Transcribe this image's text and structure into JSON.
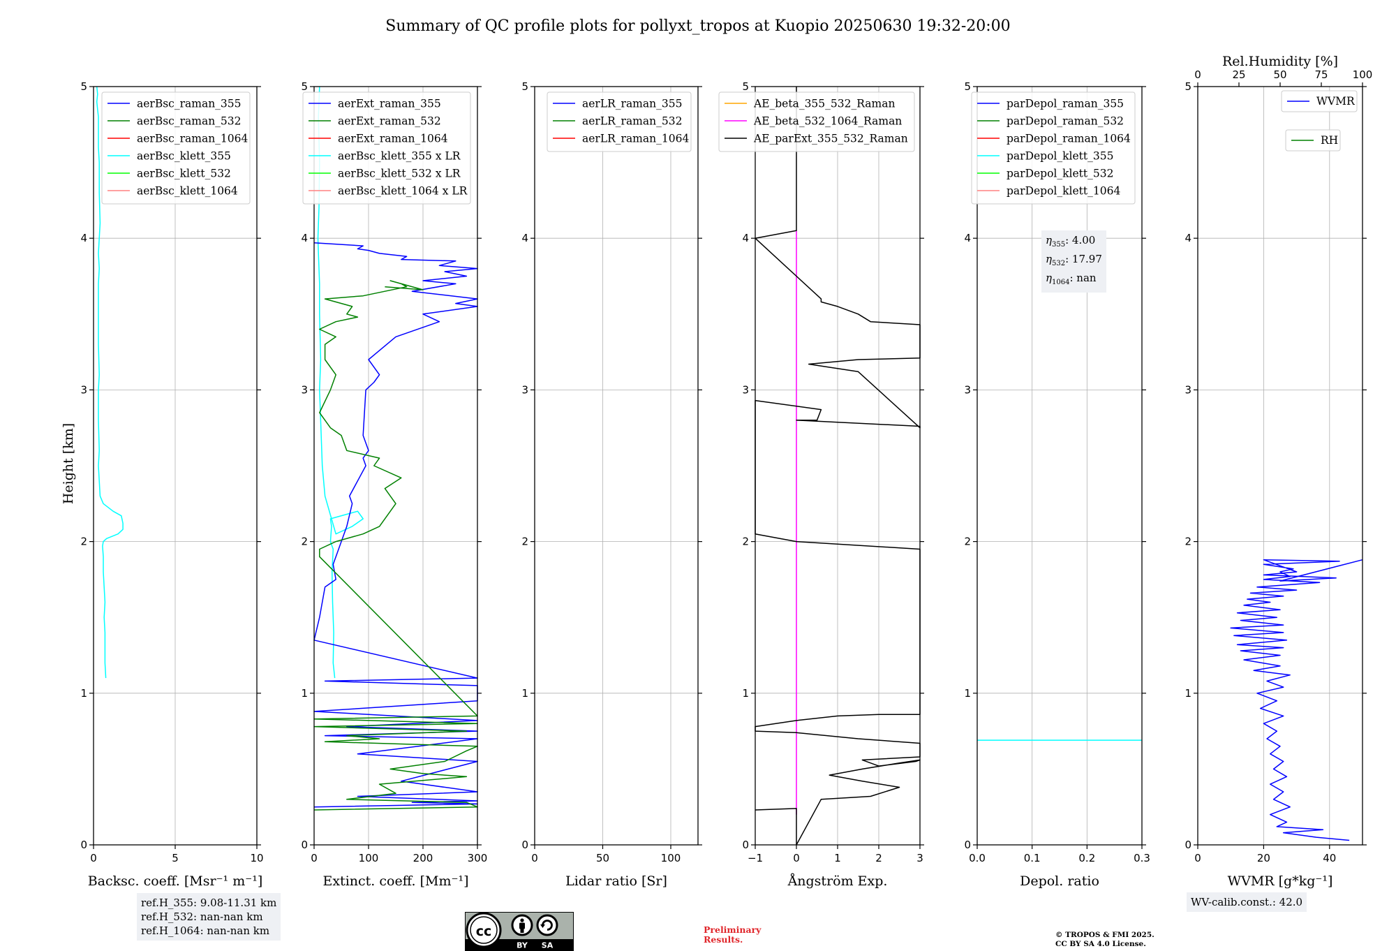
{
  "title": "Summary of QC profile plots for pollyxt_tropos at Kuopio 20250630 19:32-20:00",
  "ylabel": "Height [km]",
  "chart_data": [
    {
      "id": "bsc",
      "type": "line",
      "xlabel": "Backsc. coeff. [Msr⁻¹ m⁻¹]",
      "xlim": [
        0,
        10
      ],
      "xticks": [
        0,
        5,
        10
      ],
      "ylim": [
        0,
        5
      ],
      "yticks": [
        0,
        1,
        2,
        3,
        4,
        5
      ],
      "grid": true,
      "legend": [
        {
          "name": "aerBsc_raman_355",
          "color": "#0000ff"
        },
        {
          "name": "aerBsc_raman_532",
          "color": "#008000"
        },
        {
          "name": "aerBsc_raman_1064",
          "color": "#ff0000"
        },
        {
          "name": "aerBsc_klett_355",
          "color": "#00ffff"
        },
        {
          "name": "aerBsc_klett_532",
          "color": "#00ff00"
        },
        {
          "name": "aerBsc_klett_1064",
          "color": "#ff8080"
        }
      ],
      "series": [
        {
          "name": "aerBsc_klett_355",
          "color": "#00ffff",
          "x": [
            0.75,
            0.7,
            0.7,
            0.7,
            0.65,
            0.7,
            0.65,
            0.6,
            0.6,
            0.55,
            0.6,
            0.8,
            1.5,
            1.8,
            1.8,
            1.7,
            1.2,
            0.6,
            0.4,
            0.35,
            0.3,
            0.35,
            0.3,
            0.3,
            0.35,
            0.3,
            0.3,
            0.3,
            0.35,
            0.3,
            0.35,
            0.4,
            0.35,
            0.35,
            0.3,
            0.3,
            0.3,
            0.25,
            0.2,
            0.25,
            0.2
          ],
          "y": [
            1.1,
            1.2,
            1.3,
            1.4,
            1.5,
            1.6,
            1.7,
            1.8,
            1.9,
            1.97,
            2.0,
            2.02,
            2.05,
            2.08,
            2.12,
            2.17,
            2.2,
            2.25,
            2.3,
            2.4,
            2.5,
            2.6,
            2.8,
            3.0,
            3.1,
            3.3,
            3.5,
            3.7,
            3.8,
            3.9,
            4.0,
            4.1,
            4.3,
            4.5,
            4.6,
            4.7,
            4.8,
            4.85,
            4.9,
            4.95,
            5.0
          ]
        }
      ]
    },
    {
      "id": "ext",
      "type": "line",
      "xlabel": "Extinct. coeff. [Mm⁻¹]",
      "xlim": [
        0,
        300
      ],
      "xticks": [
        0,
        100,
        200,
        300
      ],
      "ylim": [
        0,
        5
      ],
      "yticks": [
        0,
        1,
        2,
        3,
        4,
        5
      ],
      "grid": true,
      "legend": [
        {
          "name": "aerExt_raman_355",
          "color": "#0000ff"
        },
        {
          "name": "aerExt_raman_532",
          "color": "#008000"
        },
        {
          "name": "aerExt_raman_1064",
          "color": "#ff0000"
        },
        {
          "name": "aerBsc_klett_355 x LR",
          "color": "#00ffff"
        },
        {
          "name": "aerBsc_klett_532 x LR",
          "color": "#00ff00"
        },
        {
          "name": "aerBsc_klett_1064 x LR",
          "color": "#ff8080"
        }
      ],
      "series": [
        {
          "name": "aerBsc_klett_355 x LR",
          "color": "#00ffff",
          "x": [
            38,
            35,
            36,
            34,
            33,
            35,
            30,
            32,
            30,
            60,
            80,
            90,
            70,
            40,
            20,
            15,
            12,
            10,
            12,
            10,
            10,
            8,
            7,
            9,
            10,
            8,
            10
          ],
          "y": [
            1.1,
            1.2,
            1.4,
            1.6,
            1.8,
            1.95,
            2.0,
            2.1,
            2.15,
            2.18,
            2.2,
            2.15,
            2.1,
            2.05,
            2.3,
            2.5,
            2.8,
            3.0,
            3.2,
            3.5,
            3.7,
            3.9,
            4.0,
            4.2,
            4.5,
            4.8,
            5.0
          ]
        },
        {
          "name": "aerExt_raman_355",
          "color": "#0000ff",
          "x": [
            0,
            300,
            180,
            300,
            80,
            300,
            160,
            300,
            80,
            300,
            20,
            300,
            60,
            300,
            0,
            300,
            300,
            20,
            300,
            0,
            10,
            20,
            40,
            35,
            45,
            60,
            70,
            65,
            80,
            95,
            90,
            100,
            90,
            95,
            110,
            120,
            100,
            150,
            230,
            200,
            300,
            260,
            300,
            180,
            260,
            200,
            280,
            240,
            300,
            230,
            260,
            160,
            170,
            120,
            100,
            80,
            90,
            0
          ],
          "y": [
            0.25,
            0.27,
            0.28,
            0.29,
            0.32,
            0.35,
            0.42,
            0.55,
            0.6,
            0.7,
            0.72,
            0.75,
            0.78,
            0.82,
            0.88,
            0.95,
            1.05,
            1.08,
            1.1,
            1.35,
            1.5,
            1.7,
            1.75,
            1.85,
            1.95,
            2.1,
            2.25,
            2.3,
            2.4,
            2.5,
            2.55,
            2.6,
            2.7,
            3.0,
            3.05,
            3.1,
            3.2,
            3.35,
            3.45,
            3.5,
            3.55,
            3.57,
            3.6,
            3.65,
            3.7,
            3.72,
            3.75,
            3.78,
            3.8,
            3.82,
            3.85,
            3.86,
            3.88,
            3.9,
            3.92,
            3.93,
            3.95,
            3.97
          ]
        },
        {
          "name": "aerExt_raman_532",
          "color": "#008000",
          "x": [
            0,
            300,
            280,
            60,
            150,
            120,
            280,
            200,
            140,
            240,
            280,
            300,
            20,
            120,
            60,
            280,
            0,
            300,
            0,
            300,
            10,
            10,
            40,
            90,
            120,
            150,
            130,
            160,
            110,
            120,
            60,
            50,
            30,
            20,
            10,
            30,
            40,
            20,
            20,
            40,
            10,
            40,
            80,
            60,
            70,
            20,
            90,
            130,
            170,
            160,
            140,
            200,
            130
          ],
          "y": [
            0.23,
            0.25,
            0.28,
            0.3,
            0.34,
            0.4,
            0.45,
            0.47,
            0.5,
            0.55,
            0.62,
            0.65,
            0.68,
            0.7,
            0.72,
            0.75,
            0.78,
            0.8,
            0.83,
            0.85,
            1.9,
            1.95,
            2.0,
            2.05,
            2.1,
            2.25,
            2.35,
            2.42,
            2.5,
            2.55,
            2.6,
            2.7,
            2.75,
            2.8,
            2.85,
            3.0,
            3.1,
            3.2,
            3.3,
            3.35,
            3.4,
            3.45,
            3.48,
            3.5,
            3.55,
            3.6,
            3.62,
            3.65,
            3.68,
            3.7,
            3.72,
            3.66,
            3.68
          ]
        }
      ]
    },
    {
      "id": "lr",
      "type": "line",
      "xlabel": "Lidar ratio [Sr]",
      "xlim": [
        0,
        120
      ],
      "xticks": [
        0,
        50,
        100
      ],
      "ylim": [
        0,
        5
      ],
      "yticks": [
        0,
        1,
        2,
        3,
        4,
        5
      ],
      "grid": true,
      "legend": [
        {
          "name": "aerLR_raman_355",
          "color": "#0000ff"
        },
        {
          "name": "aerLR_raman_532",
          "color": "#008000"
        },
        {
          "name": "aerLR_raman_1064",
          "color": "#ff0000"
        }
      ],
      "series": []
    },
    {
      "id": "ae",
      "type": "line",
      "xlabel": "Ångström Exp.",
      "xlim": [
        -1,
        3
      ],
      "xticks": [
        -1,
        0,
        1,
        2,
        3
      ],
      "xticklabels": [
        "−1",
        "0",
        "1",
        "2",
        "3"
      ],
      "ylim": [
        0,
        5
      ],
      "yticks": [
        0,
        1,
        2,
        3,
        4,
        5
      ],
      "grid": true,
      "legend": [
        {
          "name": "AE_beta_355_532_Raman",
          "color": "#ffa500"
        },
        {
          "name": "AE_beta_532_1064_Raman",
          "color": "#ff00ff"
        },
        {
          "name": "AE_parExt_355_532_Raman",
          "color": "#000000"
        }
      ],
      "series": [
        {
          "name": "AE_beta_532_1064_Raman",
          "color": "#ff00ff",
          "x": [
            0,
            0
          ],
          "y": [
            0.2,
            4.05
          ]
        },
        {
          "name": "AE_parExt_355_532_Raman",
          "color": "#000000",
          "x": [
            -1,
            0,
            0,
            0.6,
            1.8,
            2.5,
            1.6,
            0.8,
            1.6,
            2.5,
            3.0,
            2.9,
            2.0,
            1.6,
            3.0,
            3.0,
            1.5,
            0,
            -1,
            -1,
            0,
            1,
            2,
            3,
            3,
            0,
            -1,
            -1,
            0.6,
            0.5,
            0,
            3.0,
            3.0,
            1.5,
            0.3,
            1.5,
            3.0,
            3.0,
            1.8,
            1.5,
            1.0,
            0.6,
            0.6,
            -1,
            0,
            0,
            0,
            0
          ],
          "y": [
            0.23,
            0.24,
            0.0,
            0.3,
            0.32,
            0.38,
            0.42,
            0.46,
            0.5,
            0.54,
            0.56,
            0.55,
            0.52,
            0.56,
            0.58,
            0.67,
            0.7,
            0.74,
            0.75,
            0.78,
            0.82,
            0.85,
            0.86,
            0.86,
            1.95,
            2.0,
            2.05,
            2.93,
            2.87,
            2.8,
            2.8,
            2.76,
            2.75,
            3.12,
            3.17,
            3.2,
            3.21,
            3.43,
            3.45,
            3.5,
            3.55,
            3.58,
            3.6,
            4.0,
            4.05,
            4.08,
            5.0,
            5.0
          ]
        }
      ]
    },
    {
      "id": "depol",
      "type": "line",
      "xlabel": "Depol. ratio",
      "xlim": [
        0,
        0.3
      ],
      "xticks": [
        0,
        0.1,
        0.2,
        0.3
      ],
      "xticklabels": [
        "0.0",
        "0.1",
        "0.2",
        "0.3"
      ],
      "ylim": [
        0,
        5
      ],
      "yticks": [
        0,
        1,
        2,
        3,
        4,
        5
      ],
      "grid": true,
      "legend": [
        {
          "name": "parDepol_raman_355",
          "color": "#0000ff"
        },
        {
          "name": "parDepol_raman_532",
          "color": "#008000"
        },
        {
          "name": "parDepol_raman_1064",
          "color": "#ff0000"
        },
        {
          "name": "parDepol_klett_355",
          "color": "#00ffff"
        },
        {
          "name": "parDepol_klett_532",
          "color": "#00ff00"
        },
        {
          "name": "parDepol_klett_1064",
          "color": "#ff8080"
        }
      ],
      "series": [
        {
          "name": "parDepol_klett_355",
          "color": "#00ffff",
          "x": [
            0,
            0.3
          ],
          "y": [
            0.69,
            0.69
          ]
        }
      ]
    },
    {
      "id": "wv",
      "type": "line",
      "xlabel": "WVMR [g*kg⁻¹]",
      "xlim": [
        0,
        50
      ],
      "xticks": [
        0,
        20,
        40
      ],
      "ylim": [
        0,
        5
      ],
      "yticks": [
        0,
        1,
        2,
        3,
        4,
        5
      ],
      "grid": true,
      "x2label": "Rel.Humidity [%]",
      "x2lim": [
        0,
        100
      ],
      "x2ticks": [
        0,
        25,
        50,
        75,
        100
      ],
      "legend": [
        {
          "name": "WVMR",
          "color": "#0000ff"
        },
        {
          "name": "RH",
          "color": "#008000"
        }
      ],
      "series": [
        {
          "name": "WVMR",
          "color": "#0000ff",
          "x": [
            46,
            36,
            26,
            38,
            24,
            27,
            22,
            28,
            23,
            26,
            22,
            27,
            23,
            26,
            22,
            25,
            21,
            24,
            20,
            26,
            19,
            24,
            18,
            26,
            21,
            28,
            17,
            25,
            14,
            25,
            13,
            26,
            12,
            27,
            11,
            26,
            10,
            26,
            13,
            24,
            12,
            25,
            14,
            22,
            15,
            26,
            16,
            30,
            18,
            37,
            20,
            28,
            25,
            29,
            20,
            43,
            20,
            30,
            20,
            42,
            25,
            50
          ],
          "y": [
            0.03,
            0.05,
            0.08,
            0.1,
            0.12,
            0.15,
            0.2,
            0.25,
            0.3,
            0.35,
            0.4,
            0.45,
            0.5,
            0.55,
            0.6,
            0.65,
            0.7,
            0.75,
            0.8,
            0.85,
            0.9,
            0.95,
            1.0,
            1.04,
            1.08,
            1.12,
            1.15,
            1.18,
            1.22,
            1.25,
            1.28,
            1.3,
            1.32,
            1.35,
            1.38,
            1.4,
            1.43,
            1.45,
            1.48,
            1.5,
            1.53,
            1.55,
            1.58,
            1.6,
            1.62,
            1.64,
            1.66,
            1.68,
            1.7,
            1.73,
            1.75,
            1.77,
            1.8,
            1.82,
            1.85,
            1.87,
            1.88,
            1.8,
            1.78,
            1.76,
            1.74,
            1.88
          ]
        }
      ]
    }
  ],
  "notes": {
    "eta_355": "4.00",
    "eta_532": "17.97",
    "eta_1064": "nan",
    "refH_355": "ref.H_355: 9.08-11.31 km",
    "refH_532": "ref.H_532: nan-nan km",
    "refH_1064": "ref.H_1064: nan-nan km",
    "wv_calib": "WV-calib.const.: 42.0"
  },
  "preliminary": [
    "Preliminary",
    "Results."
  ],
  "copyright": [
    "© TROPOS & FMI 2025.",
    "CC BY SA 4.0 License."
  ],
  "license_badge": [
    "BY",
    "SA"
  ]
}
